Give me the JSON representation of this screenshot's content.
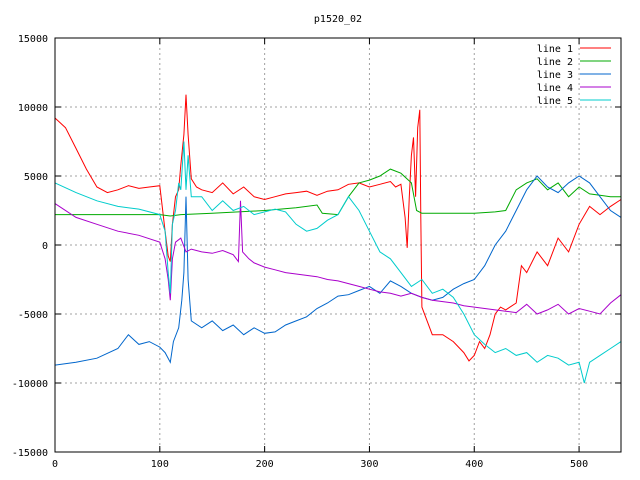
{
  "chart_data": {
    "type": "line",
    "title": "p1520_02",
    "xlabel": "",
    "ylabel": "",
    "xlim": [
      0,
      540
    ],
    "ylim": [
      -15000,
      15000
    ],
    "xticks": [
      0,
      100,
      200,
      300,
      400,
      500
    ],
    "yticks": [
      -15000,
      -10000,
      -5000,
      0,
      5000,
      10000,
      15000
    ],
    "grid": true,
    "legend_position": "top-right",
    "series": [
      {
        "name": "line 1",
        "color": "#ff0000",
        "points": [
          [
            0,
            9200
          ],
          [
            10,
            8500
          ],
          [
            20,
            7000
          ],
          [
            30,
            5500
          ],
          [
            40,
            4200
          ],
          [
            50,
            3800
          ],
          [
            60,
            4000
          ],
          [
            70,
            4300
          ],
          [
            80,
            4100
          ],
          [
            90,
            4200
          ],
          [
            100,
            4300
          ],
          [
            105,
            1000
          ],
          [
            108,
            -800
          ],
          [
            110,
            -1200
          ],
          [
            112,
            1500
          ],
          [
            115,
            3500
          ],
          [
            118,
            4000
          ],
          [
            120,
            5800
          ],
          [
            123,
            8000
          ],
          [
            125,
            10900
          ],
          [
            127,
            8000
          ],
          [
            130,
            4800
          ],
          [
            135,
            4200
          ],
          [
            140,
            4000
          ],
          [
            150,
            3800
          ],
          [
            160,
            4500
          ],
          [
            170,
            3700
          ],
          [
            180,
            4200
          ],
          [
            190,
            3500
          ],
          [
            200,
            3300
          ],
          [
            210,
            3500
          ],
          [
            220,
            3700
          ],
          [
            230,
            3800
          ],
          [
            240,
            3900
          ],
          [
            250,
            3600
          ],
          [
            260,
            3900
          ],
          [
            270,
            4000
          ],
          [
            280,
            4400
          ],
          [
            290,
            4500
          ],
          [
            300,
            4200
          ],
          [
            310,
            4400
          ],
          [
            320,
            4600
          ],
          [
            325,
            4200
          ],
          [
            330,
            4400
          ],
          [
            334,
            2000
          ],
          [
            336,
            -200
          ],
          [
            338,
            3500
          ],
          [
            340,
            6500
          ],
          [
            342,
            7800
          ],
          [
            344,
            3500
          ],
          [
            346,
            8500
          ],
          [
            348,
            9800
          ],
          [
            349,
            2000
          ],
          [
            350,
            -4500
          ],
          [
            355,
            -5500
          ],
          [
            360,
            -6500
          ],
          [
            370,
            -6500
          ],
          [
            380,
            -7000
          ],
          [
            390,
            -7800
          ],
          [
            395,
            -8400
          ],
          [
            400,
            -8000
          ],
          [
            405,
            -7000
          ],
          [
            410,
            -7500
          ],
          [
            415,
            -6500
          ],
          [
            420,
            -5000
          ],
          [
            425,
            -4500
          ],
          [
            430,
            -4700
          ],
          [
            440,
            -4200
          ],
          [
            445,
            -1500
          ],
          [
            450,
            -2000
          ],
          [
            460,
            -500
          ],
          [
            470,
            -1500
          ],
          [
            480,
            500
          ],
          [
            490,
            -500
          ],
          [
            500,
            1500
          ],
          [
            510,
            2800
          ],
          [
            520,
            2200
          ],
          [
            530,
            2800
          ],
          [
            540,
            3300
          ]
        ]
      },
      {
        "name": "line 2",
        "color": "#00aa00",
        "points": [
          [
            0,
            2200
          ],
          [
            50,
            2200
          ],
          [
            100,
            2200
          ],
          [
            110,
            2100
          ],
          [
            120,
            2200
          ],
          [
            150,
            2300
          ],
          [
            200,
            2500
          ],
          [
            230,
            2700
          ],
          [
            250,
            2900
          ],
          [
            255,
            2300
          ],
          [
            270,
            2200
          ],
          [
            280,
            3500
          ],
          [
            290,
            4500
          ],
          [
            300,
            4700
          ],
          [
            310,
            5000
          ],
          [
            320,
            5500
          ],
          [
            330,
            5200
          ],
          [
            340,
            4500
          ],
          [
            345,
            2500
          ],
          [
            350,
            2300
          ],
          [
            400,
            2300
          ],
          [
            420,
            2400
          ],
          [
            430,
            2500
          ],
          [
            440,
            4000
          ],
          [
            450,
            4500
          ],
          [
            460,
            4800
          ],
          [
            470,
            4000
          ],
          [
            480,
            4500
          ],
          [
            490,
            3500
          ],
          [
            500,
            4200
          ],
          [
            510,
            3700
          ],
          [
            520,
            3600
          ],
          [
            530,
            3500
          ],
          [
            540,
            3500
          ]
        ]
      },
      {
        "name": "line 3",
        "color": "#0066cc",
        "points": [
          [
            0,
            -8700
          ],
          [
            20,
            -8500
          ],
          [
            40,
            -8200
          ],
          [
            60,
            -7500
          ],
          [
            70,
            -6500
          ],
          [
            80,
            -7200
          ],
          [
            90,
            -7000
          ],
          [
            100,
            -7400
          ],
          [
            105,
            -7800
          ],
          [
            110,
            -8500
          ],
          [
            113,
            -7000
          ],
          [
            118,
            -6000
          ],
          [
            121,
            -4000
          ],
          [
            123,
            -2000
          ],
          [
            125,
            3500
          ],
          [
            127,
            -2500
          ],
          [
            130,
            -5500
          ],
          [
            140,
            -6000
          ],
          [
            150,
            -5500
          ],
          [
            160,
            -6200
          ],
          [
            170,
            -5800
          ],
          [
            180,
            -6500
          ],
          [
            190,
            -6000
          ],
          [
            200,
            -6400
          ],
          [
            210,
            -6300
          ],
          [
            220,
            -5800
          ],
          [
            230,
            -5500
          ],
          [
            240,
            -5200
          ],
          [
            250,
            -4600
          ],
          [
            260,
            -4200
          ],
          [
            270,
            -3700
          ],
          [
            280,
            -3600
          ],
          [
            290,
            -3300
          ],
          [
            300,
            -3000
          ],
          [
            310,
            -3500
          ],
          [
            320,
            -2600
          ],
          [
            330,
            -3000
          ],
          [
            340,
            -3500
          ],
          [
            350,
            -3800
          ],
          [
            360,
            -4000
          ],
          [
            370,
            -3800
          ],
          [
            380,
            -3200
          ],
          [
            390,
            -2800
          ],
          [
            400,
            -2500
          ],
          [
            410,
            -1500
          ],
          [
            420,
            0
          ],
          [
            430,
            1000
          ],
          [
            440,
            2500
          ],
          [
            450,
            4000
          ],
          [
            460,
            5000
          ],
          [
            470,
            4200
          ],
          [
            480,
            3800
          ],
          [
            490,
            4500
          ],
          [
            500,
            5000
          ],
          [
            510,
            4500
          ],
          [
            520,
            3500
          ],
          [
            530,
            2500
          ],
          [
            540,
            2000
          ]
        ]
      },
      {
        "name": "line 4",
        "color": "#aa00cc",
        "points": [
          [
            0,
            3000
          ],
          [
            20,
            2000
          ],
          [
            40,
            1500
          ],
          [
            60,
            1000
          ],
          [
            80,
            700
          ],
          [
            100,
            200
          ],
          [
            105,
            -1000
          ],
          [
            108,
            -2500
          ],
          [
            110,
            -4000
          ],
          [
            112,
            -1000
          ],
          [
            115,
            200
          ],
          [
            120,
            500
          ],
          [
            125,
            -500
          ],
          [
            130,
            -300
          ],
          [
            140,
            -500
          ],
          [
            150,
            -600
          ],
          [
            160,
            -400
          ],
          [
            170,
            -700
          ],
          [
            175,
            -1200
          ],
          [
            177,
            3200
          ],
          [
            179,
            -500
          ],
          [
            185,
            -1000
          ],
          [
            190,
            -1300
          ],
          [
            200,
            -1600
          ],
          [
            210,
            -1800
          ],
          [
            220,
            -2000
          ],
          [
            230,
            -2100
          ],
          [
            240,
            -2200
          ],
          [
            250,
            -2300
          ],
          [
            260,
            -2500
          ],
          [
            270,
            -2600
          ],
          [
            280,
            -2800
          ],
          [
            290,
            -3000
          ],
          [
            300,
            -3200
          ],
          [
            310,
            -3400
          ],
          [
            320,
            -3500
          ],
          [
            330,
            -3700
          ],
          [
            340,
            -3500
          ],
          [
            350,
            -3800
          ],
          [
            360,
            -4000
          ],
          [
            370,
            -4100
          ],
          [
            380,
            -4200
          ],
          [
            390,
            -4400
          ],
          [
            400,
            -4500
          ],
          [
            410,
            -4600
          ],
          [
            420,
            -4700
          ],
          [
            430,
            -4800
          ],
          [
            440,
            -4900
          ],
          [
            450,
            -4300
          ],
          [
            460,
            -5000
          ],
          [
            470,
            -4700
          ],
          [
            480,
            -4300
          ],
          [
            490,
            -5000
          ],
          [
            500,
            -4600
          ],
          [
            510,
            -4800
          ],
          [
            520,
            -5000
          ],
          [
            530,
            -4200
          ],
          [
            540,
            -3600
          ]
        ]
      },
      {
        "name": "line 5",
        "color": "#00cccc",
        "points": [
          [
            0,
            4500
          ],
          [
            20,
            3800
          ],
          [
            40,
            3200
          ],
          [
            60,
            2800
          ],
          [
            80,
            2600
          ],
          [
            100,
            2200
          ],
          [
            105,
            1000
          ],
          [
            108,
            -2000
          ],
          [
            110,
            -3500
          ],
          [
            112,
            1500
          ],
          [
            115,
            2500
          ],
          [
            118,
            4500
          ],
          [
            120,
            4000
          ],
          [
            123,
            7500
          ],
          [
            125,
            4000
          ],
          [
            127,
            6500
          ],
          [
            130,
            3500
          ],
          [
            140,
            3500
          ],
          [
            150,
            2500
          ],
          [
            160,
            3200
          ],
          [
            170,
            2500
          ],
          [
            180,
            2800
          ],
          [
            190,
            2200
          ],
          [
            200,
            2400
          ],
          [
            210,
            2600
          ],
          [
            220,
            2400
          ],
          [
            230,
            1500
          ],
          [
            240,
            1000
          ],
          [
            250,
            1200
          ],
          [
            260,
            1800
          ],
          [
            270,
            2200
          ],
          [
            280,
            3500
          ],
          [
            290,
            2500
          ],
          [
            300,
            1000
          ],
          [
            310,
            -500
          ],
          [
            320,
            -1000
          ],
          [
            330,
            -2000
          ],
          [
            340,
            -3000
          ],
          [
            350,
            -2500
          ],
          [
            360,
            -3500
          ],
          [
            370,
            -3200
          ],
          [
            380,
            -3800
          ],
          [
            390,
            -5000
          ],
          [
            400,
            -6500
          ],
          [
            410,
            -7200
          ],
          [
            420,
            -7800
          ],
          [
            430,
            -7500
          ],
          [
            440,
            -8000
          ],
          [
            450,
            -7800
          ],
          [
            460,
            -8500
          ],
          [
            470,
            -8000
          ],
          [
            480,
            -8200
          ],
          [
            490,
            -8700
          ],
          [
            500,
            -8500
          ],
          [
            505,
            -10000
          ],
          [
            510,
            -8500
          ],
          [
            520,
            -8000
          ],
          [
            530,
            -7500
          ],
          [
            540,
            -7000
          ]
        ]
      }
    ]
  }
}
